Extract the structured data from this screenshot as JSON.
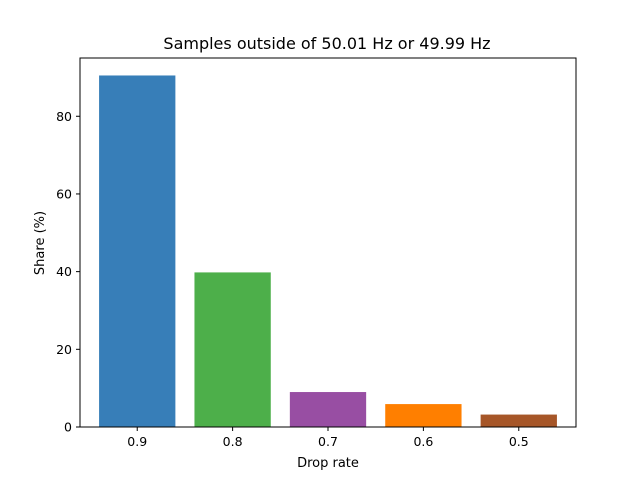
{
  "chart_data": {
    "type": "bar",
    "title": "Samples outside of 50.01 Hz or 49.99 Hz",
    "xlabel": "Drop rate",
    "ylabel": "Share (%)",
    "categories": [
      "0.9",
      "0.8",
      "0.7",
      "0.6",
      "0.5"
    ],
    "values": [
      90.5,
      39.8,
      9.0,
      5.9,
      3.2
    ],
    "colors": [
      "#377eb8",
      "#4daf4a",
      "#984ea3",
      "#ff7f00",
      "#a65628"
    ],
    "ylim": [
      0,
      95
    ],
    "yticks": [
      0,
      20,
      40,
      60,
      80
    ],
    "grid": false
  }
}
